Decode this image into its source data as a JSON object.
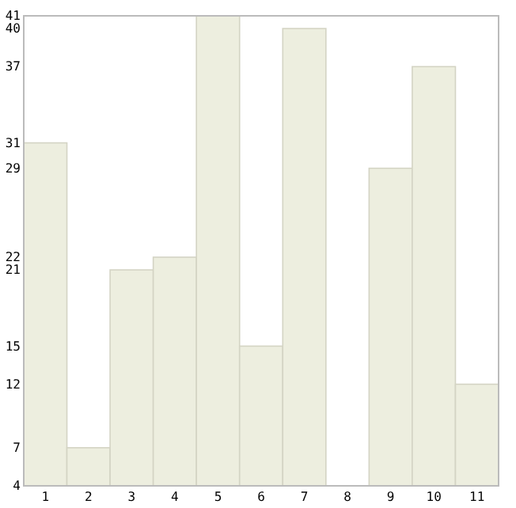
{
  "chart_data": {
    "type": "bar",
    "categories": [
      "1",
      "2",
      "3",
      "4",
      "5",
      "6",
      "7",
      "8",
      "9",
      "10",
      "11"
    ],
    "values": [
      31,
      7,
      21,
      22,
      41,
      15,
      40,
      4,
      29,
      37,
      12
    ],
    "color": "#edeedf",
    "ylim": [
      4,
      41
    ],
    "yticks": [
      4,
      7,
      12,
      15,
      21,
      22,
      29,
      31,
      37,
      40,
      41
    ],
    "grid": false
  }
}
